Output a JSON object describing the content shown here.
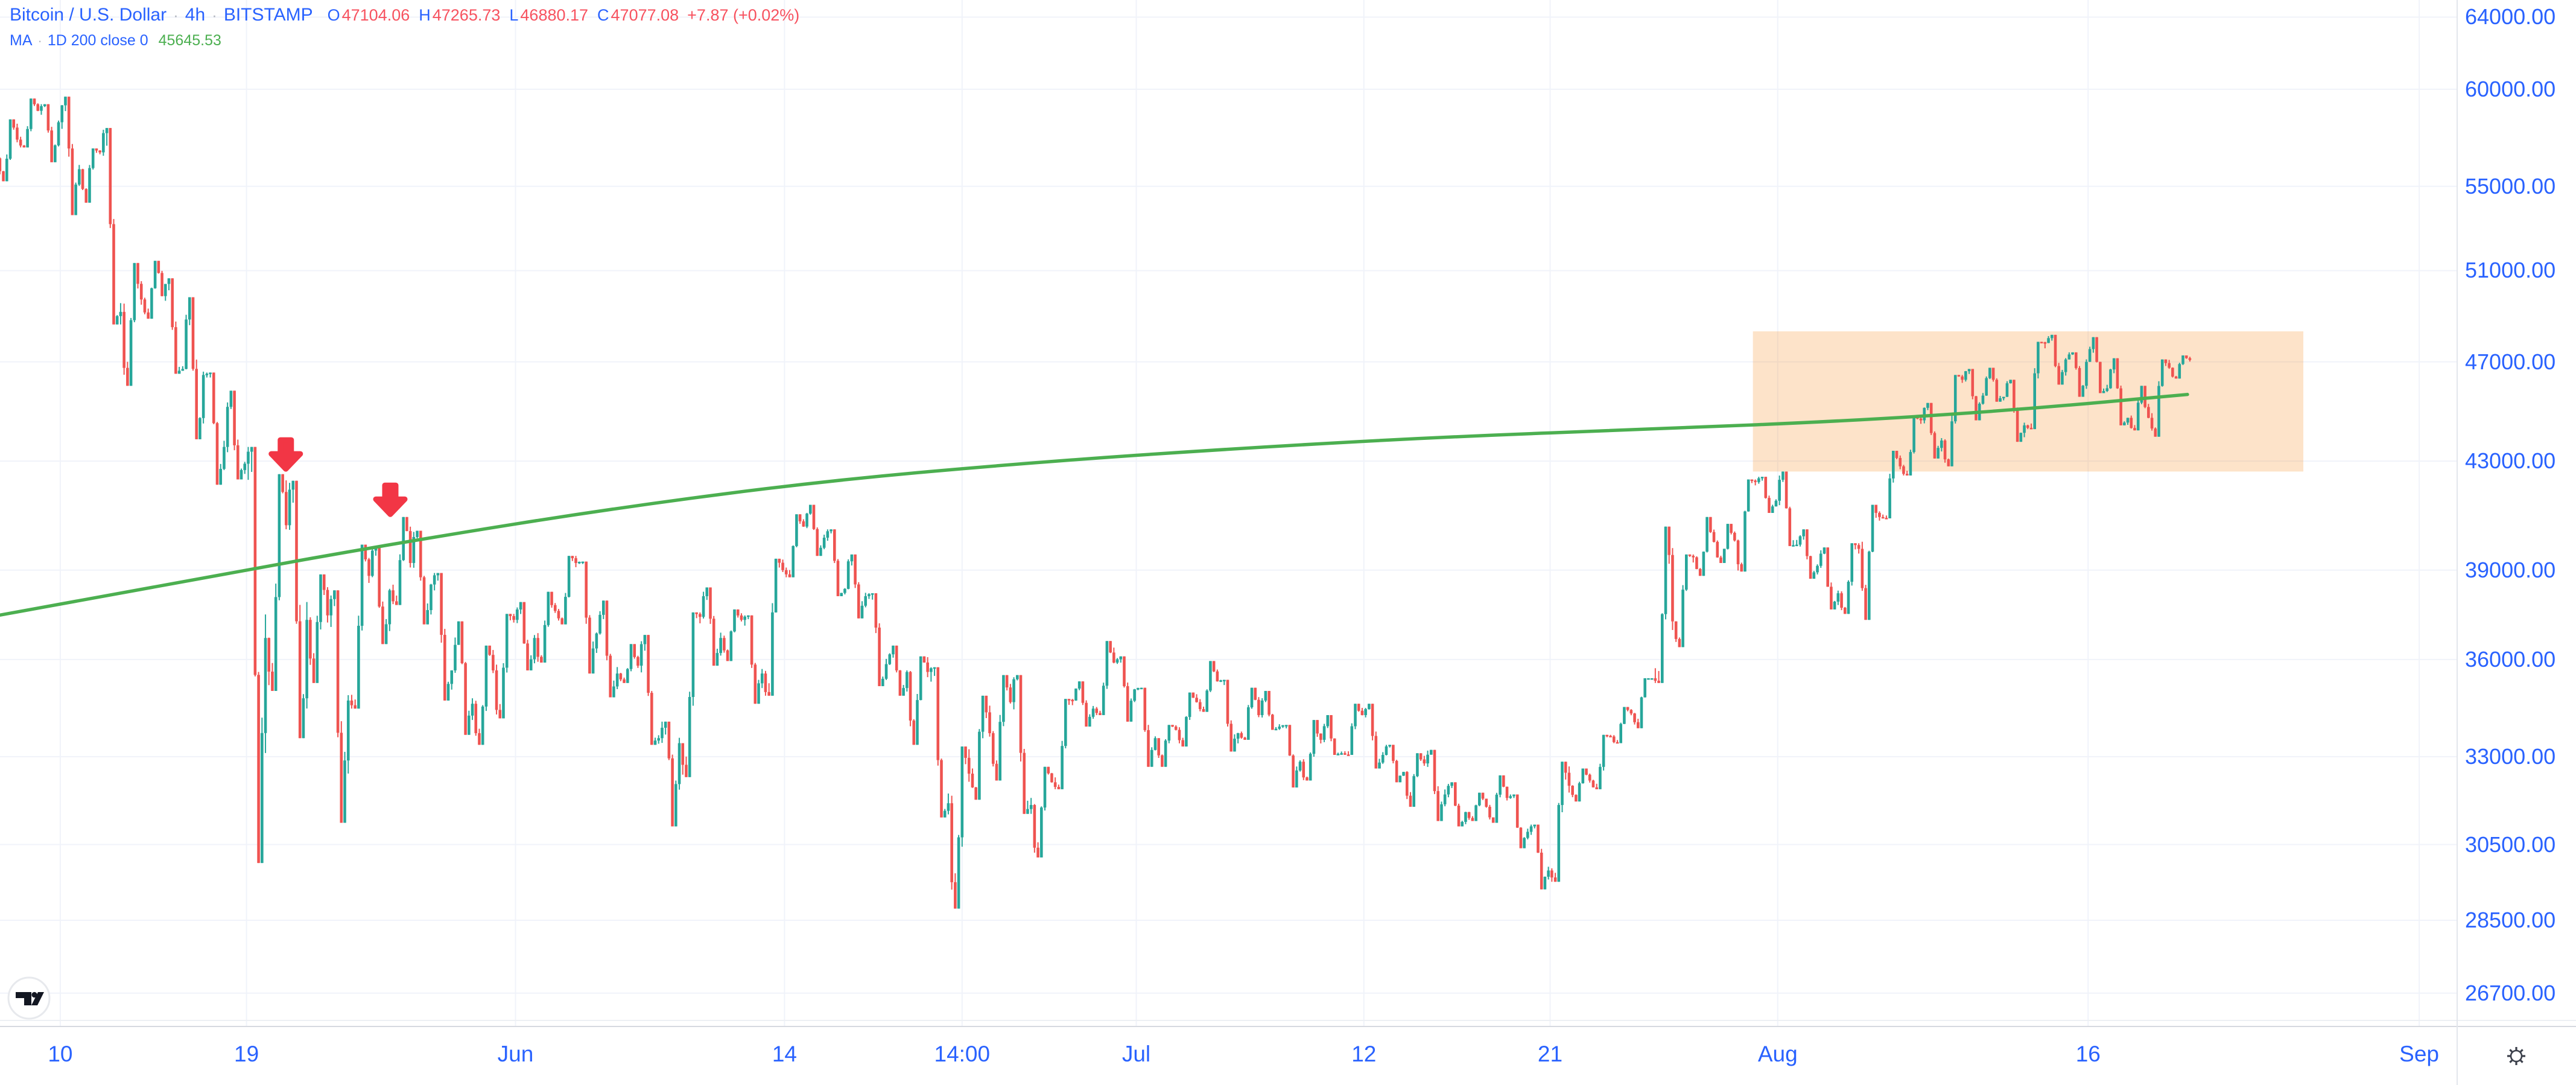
{
  "header": {
    "symbol": "Bitcoin / U.S. Dollar",
    "dot": "·",
    "interval": "4h",
    "exchange": "BITSTAMP",
    "ohlc": {
      "o_label": "O",
      "o": "47104.06",
      "h_label": "H",
      "h": "47265.73",
      "l_label": "L",
      "l": "46880.17",
      "c_label": "C",
      "c": "47077.08",
      "change": "+7.87 (+0.02%)"
    },
    "ma": {
      "label": "MA",
      "dot": "·",
      "params": "1D 200 close 0",
      "value": "45645.53"
    }
  },
  "colors": {
    "accent_blue": "#2962FF",
    "value_red": "#F7525F",
    "up_teal": "#26A69A",
    "down_red": "#EF5350",
    "ma_green": "#4CAF50",
    "arrow_red": "#F23645",
    "box_fill": "rgba(245,124,0,0.21)",
    "grid": "#F0F3FA",
    "axis_text": "#2962FF"
  },
  "icons": {
    "corner_button": "settings-gear-icon",
    "watermark": "tradingview-logo"
  },
  "chart_data": {
    "type": "candlestick",
    "title": "Bitcoin / U.S. Dollar",
    "exchange": "BITSTAMP",
    "interval": "4h",
    "price_scale": "log",
    "grid": true,
    "y_axis": {
      "decimals": 2,
      "ticks": [
        64000,
        60000,
        55000,
        51000,
        47000,
        43000,
        39000,
        36000,
        33000,
        30500,
        28500,
        26700
      ]
    },
    "x_axis": {
      "start_date": "May 7",
      "ticks": [
        {
          "label": "10",
          "day": 3
        },
        {
          "label": "19",
          "day": 12
        },
        {
          "label": "Jun",
          "day": 25
        },
        {
          "label": "14",
          "day": 38
        },
        {
          "label": "14:00",
          "day": 46.583
        },
        {
          "label": "Jul",
          "day": 55
        },
        {
          "label": "12",
          "day": 66
        },
        {
          "label": "21",
          "day": 75
        },
        {
          "label": "Aug",
          "day": 86
        },
        {
          "label": "16",
          "day": 101
        },
        {
          "label": "Sep",
          "day": 117
        }
      ]
    },
    "candles_per_day": 6,
    "daily_ohlc": [
      [
        56400,
        58400,
        55250,
        57350
      ],
      [
        57350,
        59500,
        56950,
        58850
      ],
      [
        58850,
        59200,
        56200,
        58250
      ],
      [
        58250,
        59600,
        53600,
        55850
      ],
      [
        55850,
        56900,
        54200,
        56700
      ],
      [
        56700,
        57950,
        48600,
        49150
      ],
      [
        49150,
        51350,
        46000,
        49700
      ],
      [
        49700,
        51450,
        48850,
        49850
      ],
      [
        49850,
        50650,
        46500,
        46700
      ],
      [
        46700,
        49800,
        43850,
        46450
      ],
      [
        46450,
        46550,
        42100,
        43550
      ],
      [
        43550,
        45800,
        42300,
        42900
      ],
      [
        42900,
        43550,
        30000,
        36700
      ],
      [
        36700,
        42500,
        35000,
        40600
      ],
      [
        40600,
        42250,
        33550,
        37300
      ],
      [
        37300,
        38850,
        35250,
        37450
      ],
      [
        37450,
        38300,
        31100,
        34700
      ],
      [
        34700,
        39900,
        34450,
        38800
      ],
      [
        38800,
        39850,
        36500,
        38300
      ],
      [
        38300,
        40900,
        37800,
        39250
      ],
      [
        39250,
        40400,
        37150,
        38500
      ],
      [
        38500,
        38900,
        34700,
        35650
      ],
      [
        35650,
        37250,
        33650,
        34600
      ],
      [
        34600,
        36450,
        33350,
        35650
      ],
      [
        35650,
        37500,
        34150,
        37300
      ],
      [
        37300,
        37900,
        35650,
        36700
      ],
      [
        36700,
        38250,
        35900,
        37600
      ],
      [
        37600,
        39500,
        37150,
        39250
      ],
      [
        39250,
        39300,
        35550,
        36850
      ],
      [
        36850,
        37950,
        34800,
        35550
      ],
      [
        35550,
        36500,
        35250,
        35800
      ],
      [
        35800,
        36800,
        33350,
        33550
      ],
      [
        33550,
        34050,
        31000,
        33400
      ],
      [
        33400,
        37550,
        32400,
        37400
      ],
      [
        37400,
        38400,
        35800,
        36700
      ],
      [
        36700,
        37650,
        35950,
        37300
      ],
      [
        37300,
        37450,
        34600,
        35550
      ],
      [
        35550,
        39400,
        34850,
        39000
      ],
      [
        39000,
        41000,
        38750,
        40550
      ],
      [
        40550,
        41350,
        39500,
        40150
      ],
      [
        40150,
        40450,
        38100,
        38350
      ],
      [
        38350,
        39550,
        37350,
        38100
      ],
      [
        38100,
        38200,
        35150,
        35850
      ],
      [
        35850,
        36450,
        34850,
        35600
      ],
      [
        35600,
        36100,
        33350,
        35600
      ],
      [
        35600,
        35750,
        31250,
        31650
      ],
      [
        31650,
        33300,
        28800,
        32500
      ],
      [
        32500,
        34850,
        31750,
        33700
      ],
      [
        33700,
        35500,
        32300,
        34650
      ],
      [
        34650,
        35500,
        31350,
        31600
      ],
      [
        31600,
        32700,
        30150,
        32250
      ],
      [
        32250,
        34750,
        32050,
        34700
      ],
      [
        34700,
        35300,
        33900,
        34450
      ],
      [
        34450,
        36600,
        34250,
        35900
      ],
      [
        35900,
        36100,
        34050,
        35050
      ],
      [
        35050,
        35100,
        32700,
        33550
      ],
      [
        33550,
        33950,
        32700,
        33800
      ],
      [
        33800,
        34950,
        33300,
        34650
      ],
      [
        34650,
        35950,
        34350,
        35300
      ],
      [
        35300,
        35350,
        33150,
        33700
      ],
      [
        33700,
        35100,
        33500,
        34250
      ],
      [
        34250,
        35000,
        33800,
        33900
      ],
      [
        33900,
        33950,
        32100,
        32850
      ],
      [
        32850,
        34100,
        32300,
        33500
      ],
      [
        33500,
        34250,
        33050,
        33100
      ],
      [
        33100,
        34600,
        33050,
        34250
      ],
      [
        34250,
        34600,
        32650,
        33050
      ],
      [
        33050,
        33350,
        32250,
        32550
      ],
      [
        32550,
        33100,
        31550,
        32800
      ],
      [
        32800,
        33200,
        31150,
        31900
      ],
      [
        31900,
        32250,
        31000,
        31400
      ],
      [
        31400,
        31950,
        31150,
        31550
      ],
      [
        31550,
        32450,
        31100,
        31800
      ],
      [
        31800,
        31900,
        30400,
        30850
      ],
      [
        30850,
        31050,
        29300,
        29800
      ],
      [
        29800,
        32850,
        29500,
        32150
      ],
      [
        32150,
        32650,
        31700,
        32300
      ],
      [
        32300,
        33650,
        32050,
        33600
      ],
      [
        33600,
        34500,
        33400,
        34300
      ],
      [
        34300,
        35400,
        33850,
        35400
      ],
      [
        35400,
        40550,
        35250,
        37250
      ],
      [
        37250,
        39550,
        36400,
        39450
      ],
      [
        39450,
        40900,
        38800,
        40000
      ],
      [
        40000,
        40650,
        39250,
        40050
      ],
      [
        40050,
        42300,
        38950,
        42200
      ],
      [
        42200,
        42400,
        41050,
        41500
      ],
      [
        41500,
        42600,
        39850,
        39900
      ],
      [
        39900,
        40450,
        38700,
        39150
      ],
      [
        39150,
        39800,
        37650,
        38200
      ],
      [
        38200,
        39950,
        37500,
        39750
      ],
      [
        39750,
        41350,
        37300,
        40900
      ],
      [
        40900,
        43400,
        40850,
        42800
      ],
      [
        42800,
        44750,
        42450,
        44600
      ],
      [
        44600,
        45300,
        43100,
        43800
      ],
      [
        43800,
        46450,
        42800,
        46250
      ],
      [
        46250,
        46700,
        44600,
        45600
      ],
      [
        45600,
        46750,
        45350,
        45550
      ],
      [
        45550,
        46250,
        43750,
        44400
      ],
      [
        44400,
        47850,
        44250,
        47800
      ],
      [
        47800,
        48150,
        46050,
        47100
      ],
      [
        47100,
        47400,
        45550,
        47000
      ],
      [
        47000,
        48050,
        45700,
        45900
      ],
      [
        45900,
        47150,
        44400,
        44700
      ],
      [
        44700,
        46000,
        44200,
        44700
      ],
      [
        44700,
        47100,
        43950,
        46750
      ],
      [
        46750,
        47270,
        46300,
        47077
      ]
    ],
    "ma_200d": {
      "period": 200,
      "timeframe": "1D",
      "source": "close",
      "offset": 0,
      "last_value": 45645.53,
      "points": [
        [
          0,
          37450
        ],
        [
          10,
          38750
        ],
        [
          20,
          40050
        ],
        [
          30,
          41250
        ],
        [
          40,
          42250
        ],
        [
          50,
          42950
        ],
        [
          60,
          43500
        ],
        [
          70,
          43950
        ],
        [
          80,
          44250
        ],
        [
          90,
          44600
        ],
        [
          98,
          45050
        ],
        [
          105.8,
          45645.53
        ]
      ]
    },
    "annotations": {
      "arrows_down": [
        {
          "day": 13.9,
          "price": 42700
        },
        {
          "day": 18.95,
          "price": 41000
        }
      ],
      "highlight_box": {
        "day_start": 84.8,
        "day_end": 111.4,
        "price_top": 48300,
        "price_bottom": 42600
      }
    }
  }
}
